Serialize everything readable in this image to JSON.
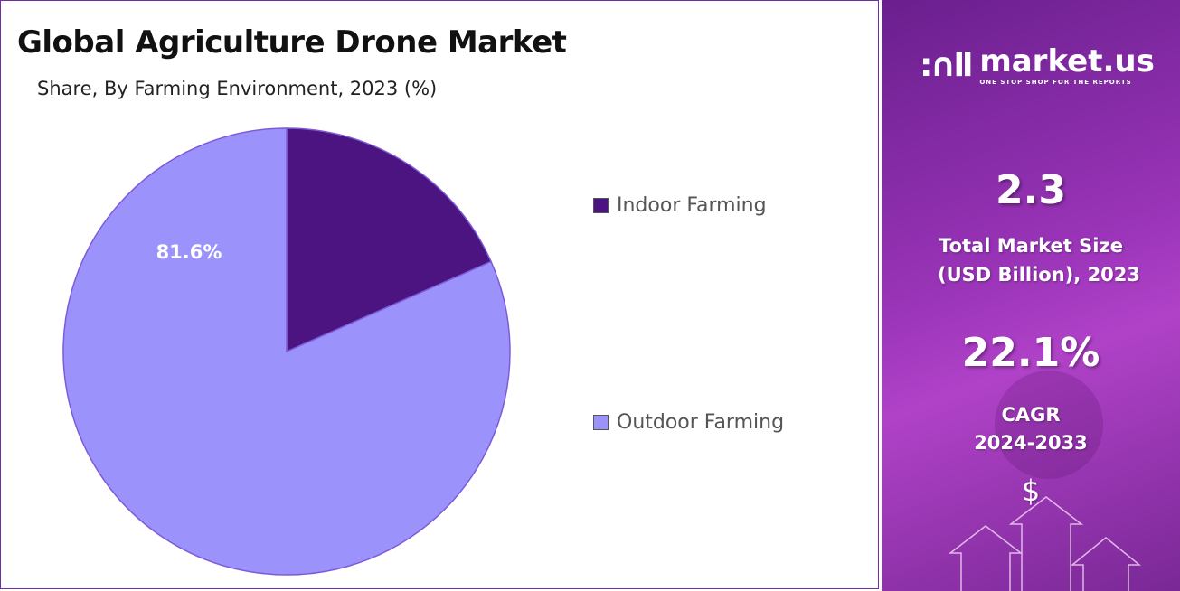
{
  "chart_data": {
    "type": "pie",
    "title": "Global Agriculture Drone Market",
    "subtitle": "Share, By Farming Environment, 2023 (%)",
    "categories": [
      "Indoor Farming",
      "Outdoor Farming"
    ],
    "values": [
      18.4,
      81.6
    ],
    "data_labels": [
      "",
      "81.6%"
    ],
    "colors": [
      "#4b1480",
      "#9b93fb"
    ],
    "legend_position": "right"
  },
  "side_panel": {
    "brand": "market.us",
    "tagline": "ONE STOP SHOP FOR THE REPORTS",
    "market_size_value": "2.3",
    "market_size_label_1": "Total Market Size",
    "market_size_label_2": "(USD Billion), 2023",
    "cagr_value": "22.1%",
    "cagr_label_1": "CAGR",
    "cagr_label_2": "2024-2033",
    "dollar_symbol": "$"
  }
}
